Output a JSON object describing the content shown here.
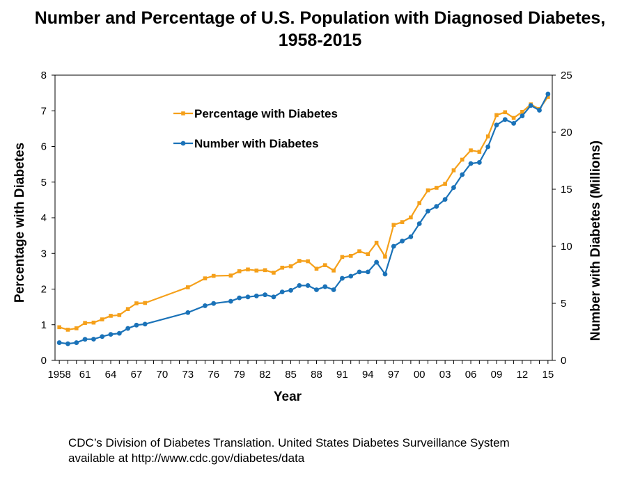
{
  "title_line1": "Number and Percentage of U.S. Population with Diagnosed Diabetes,",
  "title_line2": "1958-2015",
  "footer_line1": "CDC’s Division of Diabetes Translation. United States Diabetes Surveillance System",
  "footer_line2": "available at http://www.cdc.gov/diabetes/data",
  "colors": {
    "percentage": "#f5a01a",
    "number": "#1a72b8",
    "axis": "#000000"
  },
  "chart_data": {
    "type": "line",
    "title": "Number and Percentage of U.S. Population with Diagnosed Diabetes, 1958-2015",
    "xlabel": "Year",
    "ylabel_left": "Percentage with Diabetes",
    "ylabel_right": "Number with Diabetes (Millions)",
    "xlim": [
      1957.5,
      2015.5
    ],
    "ylim_left": [
      0,
      8
    ],
    "ylim_right": [
      0,
      25
    ],
    "left_ticks": [
      0,
      1,
      2,
      3,
      4,
      5,
      6,
      7,
      8
    ],
    "right_ticks": [
      0,
      5,
      10,
      15,
      20,
      25
    ],
    "x_ticks": [
      {
        "year": 1958,
        "label": "1958"
      },
      {
        "year": 1961,
        "label": "61"
      },
      {
        "year": 1964,
        "label": "64"
      },
      {
        "year": 1967,
        "label": "67"
      },
      {
        "year": 1970,
        "label": "70"
      },
      {
        "year": 1973,
        "label": "73"
      },
      {
        "year": 1976,
        "label": "76"
      },
      {
        "year": 1979,
        "label": "79"
      },
      {
        "year": 1982,
        "label": "82"
      },
      {
        "year": 1985,
        "label": "85"
      },
      {
        "year": 1988,
        "label": "88"
      },
      {
        "year": 1991,
        "label": "91"
      },
      {
        "year": 1994,
        "label": "94"
      },
      {
        "year": 1997,
        "label": "97"
      },
      {
        "year": 2000,
        "label": "00"
      },
      {
        "year": 2003,
        "label": "03"
      },
      {
        "year": 2006,
        "label": "06"
      },
      {
        "year": 2009,
        "label": "09"
      },
      {
        "year": 2012,
        "label": "12"
      },
      {
        "year": 2015,
        "label": "15"
      }
    ],
    "legend": "upper-left inside plot",
    "grid": false,
    "series": [
      {
        "name": "Percentage with Diabetes",
        "axis": "left",
        "marker": "square",
        "x": [
          1958,
          1959,
          1960,
          1961,
          1962,
          1963,
          1964,
          1965,
          1966,
          1967,
          1968,
          1973,
          1975,
          1976,
          1978,
          1979,
          1980,
          1981,
          1982,
          1983,
          1984,
          1985,
          1986,
          1987,
          1988,
          1989,
          1990,
          1991,
          1992,
          1993,
          1994,
          1995,
          1996,
          1997,
          1998,
          1999,
          2000,
          2001,
          2002,
          2003,
          2004,
          2005,
          2006,
          2007,
          2008,
          2009,
          2010,
          2011,
          2012,
          2013,
          2014,
          2015
        ],
        "y": [
          0.93,
          0.86,
          0.9,
          1.05,
          1.06,
          1.15,
          1.25,
          1.27,
          1.44,
          1.6,
          1.61,
          2.05,
          2.3,
          2.37,
          2.38,
          2.5,
          2.55,
          2.52,
          2.53,
          2.46,
          2.6,
          2.64,
          2.79,
          2.78,
          2.57,
          2.67,
          2.52,
          2.9,
          2.93,
          3.06,
          2.98,
          3.3,
          2.91,
          3.8,
          3.88,
          4.01,
          4.41,
          4.77,
          4.84,
          4.95,
          5.33,
          5.63,
          5.89,
          5.85,
          6.28,
          6.88,
          6.96,
          6.8,
          6.97,
          7.18,
          7.05,
          7.39
        ]
      },
      {
        "name": "Number with Diabetes",
        "axis": "right",
        "marker": "circle",
        "x": [
          1958,
          1959,
          1960,
          1961,
          1962,
          1963,
          1964,
          1965,
          1966,
          1967,
          1968,
          1973,
          1975,
          1976,
          1978,
          1979,
          1980,
          1981,
          1982,
          1983,
          1984,
          1985,
          1986,
          1987,
          1988,
          1989,
          1990,
          1991,
          1992,
          1993,
          1994,
          1995,
          1996,
          1997,
          1998,
          1999,
          2000,
          2001,
          2002,
          2003,
          2004,
          2005,
          2006,
          2007,
          2008,
          2009,
          2010,
          2011,
          2012,
          2013,
          2014,
          2015
        ],
        "y": [
          1.55,
          1.46,
          1.55,
          1.85,
          1.86,
          2.09,
          2.28,
          2.37,
          2.8,
          3.09,
          3.18,
          4.19,
          4.79,
          4.99,
          5.18,
          5.48,
          5.56,
          5.65,
          5.75,
          5.56,
          6.0,
          6.14,
          6.56,
          6.56,
          6.19,
          6.46,
          6.19,
          7.19,
          7.38,
          7.75,
          7.75,
          8.6,
          7.56,
          10.0,
          10.46,
          10.83,
          11.98,
          13.09,
          13.5,
          14.11,
          15.15,
          16.28,
          17.25,
          17.35,
          18.72,
          20.63,
          21.11,
          20.77,
          21.43,
          22.34,
          21.92,
          23.35
        ]
      }
    ]
  }
}
